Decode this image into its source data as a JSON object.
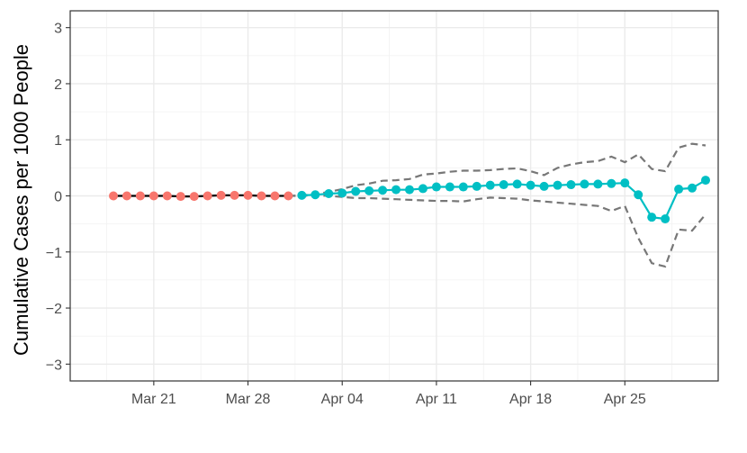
{
  "chart_data": {
    "type": "line",
    "title": "",
    "xlabel": "",
    "ylabel": "Cumulative Cases per 1000 People",
    "x_axis": {
      "type": "date",
      "range": [
        "2020-03-15",
        "2020-05-01"
      ],
      "ticks": [
        {
          "date": "2020-03-21",
          "label": "Mar 21"
        },
        {
          "date": "2020-03-28",
          "label": "Mar 28"
        },
        {
          "date": "2020-04-04",
          "label": "Apr 04"
        },
        {
          "date": "2020-04-11",
          "label": "Apr 11"
        },
        {
          "date": "2020-04-18",
          "label": "Apr 18"
        },
        {
          "date": "2020-04-25",
          "label": "Apr 25"
        }
      ]
    },
    "y_axis": {
      "range": [
        -3.3,
        3.3
      ],
      "ticks": [
        {
          "value": 3,
          "label": "3"
        },
        {
          "value": 2,
          "label": "2"
        },
        {
          "value": 1,
          "label": "1"
        },
        {
          "value": 0,
          "label": "0"
        },
        {
          "value": -1,
          "label": "−1"
        },
        {
          "value": -2,
          "label": "−2"
        },
        {
          "value": -3,
          "label": "−3"
        }
      ]
    },
    "grid": true,
    "legend": "none",
    "series": [
      {
        "role": "pre-period",
        "color": "#F8766D",
        "line_color": "#000000",
        "points": [
          {
            "x": "2020-03-18",
            "y": 0.0
          },
          {
            "x": "2020-03-19",
            "y": 0.0
          },
          {
            "x": "2020-03-20",
            "y": 0.0
          },
          {
            "x": "2020-03-21",
            "y": 0.0
          },
          {
            "x": "2020-03-22",
            "y": 0.0
          },
          {
            "x": "2020-03-23",
            "y": -0.01
          },
          {
            "x": "2020-03-24",
            "y": -0.01
          },
          {
            "x": "2020-03-25",
            "y": 0.0
          },
          {
            "x": "2020-03-26",
            "y": 0.01
          },
          {
            "x": "2020-03-27",
            "y": 0.01
          },
          {
            "x": "2020-03-28",
            "y": 0.01
          },
          {
            "x": "2020-03-29",
            "y": 0.0
          },
          {
            "x": "2020-03-30",
            "y": 0.0
          },
          {
            "x": "2020-03-31",
            "y": 0.0
          }
        ]
      },
      {
        "role": "post-period",
        "color": "#00BFC4",
        "line_color": "#00BFC4",
        "points": [
          {
            "x": "2020-04-01",
            "y": 0.01
          },
          {
            "x": "2020-04-02",
            "y": 0.02
          },
          {
            "x": "2020-04-03",
            "y": 0.04
          },
          {
            "x": "2020-04-04",
            "y": 0.05
          },
          {
            "x": "2020-04-05",
            "y": 0.08
          },
          {
            "x": "2020-04-06",
            "y": 0.09
          },
          {
            "x": "2020-04-07",
            "y": 0.1
          },
          {
            "x": "2020-04-08",
            "y": 0.11
          },
          {
            "x": "2020-04-09",
            "y": 0.11
          },
          {
            "x": "2020-04-10",
            "y": 0.13
          },
          {
            "x": "2020-04-11",
            "y": 0.16
          },
          {
            "x": "2020-04-12",
            "y": 0.16
          },
          {
            "x": "2020-04-13",
            "y": 0.16
          },
          {
            "x": "2020-04-14",
            "y": 0.17
          },
          {
            "x": "2020-04-15",
            "y": 0.19
          },
          {
            "x": "2020-04-16",
            "y": 0.2
          },
          {
            "x": "2020-04-17",
            "y": 0.21
          },
          {
            "x": "2020-04-18",
            "y": 0.19
          },
          {
            "x": "2020-04-19",
            "y": 0.17
          },
          {
            "x": "2020-04-20",
            "y": 0.19
          },
          {
            "x": "2020-04-21",
            "y": 0.2
          },
          {
            "x": "2020-04-22",
            "y": 0.21
          },
          {
            "x": "2020-04-23",
            "y": 0.21
          },
          {
            "x": "2020-04-24",
            "y": 0.22
          },
          {
            "x": "2020-04-25",
            "y": 0.23
          },
          {
            "x": "2020-04-26",
            "y": 0.02
          },
          {
            "x": "2020-04-27",
            "y": -0.38
          },
          {
            "x": "2020-04-28",
            "y": -0.41
          },
          {
            "x": "2020-04-29",
            "y": 0.12
          },
          {
            "x": "2020-04-30",
            "y": 0.14
          },
          {
            "x": "2020-05-01",
            "y": 0.28
          }
        ]
      },
      {
        "role": "upper-bound",
        "style": "dashed",
        "color": "#777777",
        "points": [
          {
            "x": "2020-03-31",
            "y": 0.0
          },
          {
            "x": "2020-04-01",
            "y": 0.01
          },
          {
            "x": "2020-04-02",
            "y": 0.03
          },
          {
            "x": "2020-04-03",
            "y": 0.07
          },
          {
            "x": "2020-04-04",
            "y": 0.12
          },
          {
            "x": "2020-04-05",
            "y": 0.19
          },
          {
            "x": "2020-04-06",
            "y": 0.22
          },
          {
            "x": "2020-04-07",
            "y": 0.27
          },
          {
            "x": "2020-04-08",
            "y": 0.28
          },
          {
            "x": "2020-04-09",
            "y": 0.3
          },
          {
            "x": "2020-04-10",
            "y": 0.38
          },
          {
            "x": "2020-04-11",
            "y": 0.4
          },
          {
            "x": "2020-04-12",
            "y": 0.43
          },
          {
            "x": "2020-04-13",
            "y": 0.45
          },
          {
            "x": "2020-04-14",
            "y": 0.45
          },
          {
            "x": "2020-04-15",
            "y": 0.46
          },
          {
            "x": "2020-04-16",
            "y": 0.48
          },
          {
            "x": "2020-04-17",
            "y": 0.49
          },
          {
            "x": "2020-04-18",
            "y": 0.44
          },
          {
            "x": "2020-04-19",
            "y": 0.37
          },
          {
            "x": "2020-04-20",
            "y": 0.5
          },
          {
            "x": "2020-04-21",
            "y": 0.56
          },
          {
            "x": "2020-04-22",
            "y": 0.6
          },
          {
            "x": "2020-04-23",
            "y": 0.62
          },
          {
            "x": "2020-04-24",
            "y": 0.7
          },
          {
            "x": "2020-04-25",
            "y": 0.6
          },
          {
            "x": "2020-04-26",
            "y": 0.74
          },
          {
            "x": "2020-04-27",
            "y": 0.48
          },
          {
            "x": "2020-04-28",
            "y": 0.44
          },
          {
            "x": "2020-04-29",
            "y": 0.86
          },
          {
            "x": "2020-04-30",
            "y": 0.93
          },
          {
            "x": "2020-05-01",
            "y": 0.9
          }
        ]
      },
      {
        "role": "lower-bound",
        "style": "dashed",
        "color": "#777777",
        "points": [
          {
            "x": "2020-03-31",
            "y": 0.0
          },
          {
            "x": "2020-04-01",
            "y": 0.0
          },
          {
            "x": "2020-04-02",
            "y": 0.01
          },
          {
            "x": "2020-04-03",
            "y": 0.0
          },
          {
            "x": "2020-04-04",
            "y": -0.02
          },
          {
            "x": "2020-04-05",
            "y": -0.04
          },
          {
            "x": "2020-04-06",
            "y": -0.04
          },
          {
            "x": "2020-04-07",
            "y": -0.05
          },
          {
            "x": "2020-04-08",
            "y": -0.06
          },
          {
            "x": "2020-04-09",
            "y": -0.07
          },
          {
            "x": "2020-04-10",
            "y": -0.08
          },
          {
            "x": "2020-04-11",
            "y": -0.09
          },
          {
            "x": "2020-04-12",
            "y": -0.09
          },
          {
            "x": "2020-04-13",
            "y": -0.1
          },
          {
            "x": "2020-04-14",
            "y": -0.06
          },
          {
            "x": "2020-04-15",
            "y": -0.03
          },
          {
            "x": "2020-04-16",
            "y": -0.04
          },
          {
            "x": "2020-04-17",
            "y": -0.05
          },
          {
            "x": "2020-04-18",
            "y": -0.08
          },
          {
            "x": "2020-04-19",
            "y": -0.1
          },
          {
            "x": "2020-04-20",
            "y": -0.12
          },
          {
            "x": "2020-04-21",
            "y": -0.14
          },
          {
            "x": "2020-04-22",
            "y": -0.16
          },
          {
            "x": "2020-04-23",
            "y": -0.18
          },
          {
            "x": "2020-04-24",
            "y": -0.27
          },
          {
            "x": "2020-04-25",
            "y": -0.18
          },
          {
            "x": "2020-04-26",
            "y": -0.75
          },
          {
            "x": "2020-04-27",
            "y": -1.2
          },
          {
            "x": "2020-04-28",
            "y": -1.26
          },
          {
            "x": "2020-04-29",
            "y": -0.6
          },
          {
            "x": "2020-04-30",
            "y": -0.62
          },
          {
            "x": "2020-05-01",
            "y": -0.33
          }
        ]
      }
    ]
  }
}
